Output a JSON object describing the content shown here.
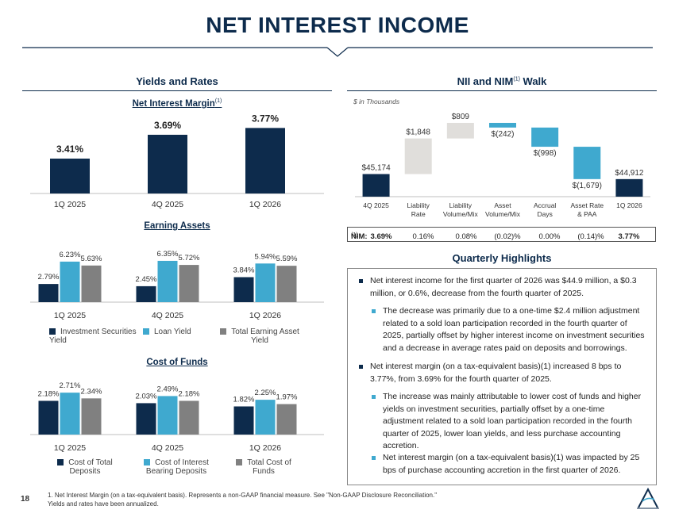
{
  "page_title": "NET INTEREST INCOME",
  "page_number": "18",
  "colors": {
    "navy": "#0d2b4c",
    "teal": "#3fa9cf",
    "gray": "#808080",
    "light_gray": "#e0dedb"
  },
  "left": {
    "heading": "Yields and Rates",
    "nim_chart_title": "Net Interest Margin",
    "nim_chart_title_sup": "(1)",
    "earning_title": "Earning Assets",
    "cof_title": "Cost of Funds",
    "earning_legend": [
      "Investment Securities Yield",
      "Loan Yield",
      "Total Earning Asset Yield"
    ],
    "cof_legend": [
      "Cost of Total Deposits",
      "Cost of Interest Bearing Deposits",
      "Total Cost of Funds"
    ]
  },
  "right": {
    "heading": "NII and NIM",
    "heading_sup": "(1)",
    "heading_suffix": " Walk",
    "units_note": "$ in Thousands",
    "nim_label": "NIM:",
    "nim_sup": "(1)",
    "nim_values": [
      "3.69%",
      "0.16%",
      "0.08%",
      "(0.02)%",
      "0.00%",
      "(0.14)%",
      "3.77%"
    ],
    "highlights_title": "Quarterly Highlights",
    "bullets": [
      {
        "level": 1,
        "text": "Net interest income for the first quarter of 2026 was $44.9 million, a $0.3 million, or 0.6%, decrease from the fourth quarter of 2025."
      },
      {
        "level": 2,
        "text": "The decrease was primarily due to a one-time $2.4 million adjustment related to a sold loan participation recorded in the fourth quarter of 2025, partially offset by higher interest income on investment securities and a decrease in average rates paid on deposits and borrowings."
      },
      {
        "level": 1,
        "text": "Net interest margin (on a tax-equivalent basis)(1) increased 8 bps to 3.77%, from 3.69% for the fourth quarter of 2025."
      },
      {
        "level": 2,
        "text": "The increase was mainly attributable to lower cost of funds and higher yields on investment securities, partially offset by a one-time adjustment related to a sold loan participation recorded in the fourth quarter of 2025, lower loan yields, and less purchase accounting accretion."
      },
      {
        "level": 2,
        "text": "Net interest margin (on a tax-equivalent basis)(1) was impacted by 25 bps of purchase accounting accretion in the first quarter of 2026."
      }
    ]
  },
  "footnotes": [
    "1. Net Interest Margin (on a tax-equivalent basis). Represents a non-GAAP financial measure. See \"Non-GAAP Disclosure Reconciliation.\"",
    "Yields and rates have been annualized."
  ],
  "chart_data": [
    {
      "id": "nim",
      "type": "bar",
      "title": "Net Interest Margin",
      "categories": [
        "1Q 2025",
        "4Q 2025",
        "1Q 2026"
      ],
      "series": [
        {
          "values": [
            3.41,
            3.69,
            3.77
          ],
          "labels": [
            "3.41%",
            "3.69%",
            "3.77%"
          ]
        }
      ]
    },
    {
      "id": "earning",
      "type": "bar",
      "title": "Earning Assets",
      "categories": [
        "1Q 2025",
        "4Q 2025",
        "1Q 2026"
      ],
      "series": [
        {
          "name": "Investment Securities Yield",
          "color": "#0d2b4c",
          "values": [
            2.79,
            2.45,
            3.84
          ],
          "labels": [
            "2.79%",
            "2.45%",
            "3.84%"
          ]
        },
        {
          "name": "Loan Yield",
          "color": "#3fa9cf",
          "values": [
            6.23,
            6.35,
            5.94
          ],
          "labels": [
            "6.23%",
            "6.35%",
            "5.94%"
          ]
        },
        {
          "name": "Total Earning Asset Yield",
          "color": "#808080",
          "values": [
            5.63,
            5.72,
            5.59
          ],
          "labels": [
            "5.63%",
            "5.72%",
            "5.59%"
          ]
        }
      ]
    },
    {
      "id": "cof",
      "type": "bar",
      "title": "Cost of Funds",
      "categories": [
        "1Q 2025",
        "4Q 2025",
        "1Q 2026"
      ],
      "series": [
        {
          "name": "Cost of Total Deposits",
          "color": "#0d2b4c",
          "values": [
            2.18,
            2.03,
            1.82
          ],
          "labels": [
            "2.18%",
            "2.03%",
            "1.82%"
          ]
        },
        {
          "name": "Cost of Interest Bearing Deposits",
          "color": "#3fa9cf",
          "values": [
            2.71,
            2.49,
            2.25
          ],
          "labels": [
            "2.71%",
            "2.49%",
            "2.25%"
          ]
        },
        {
          "name": "Total Cost of Funds",
          "color": "#808080",
          "values": [
            2.34,
            2.18,
            1.97
          ],
          "labels": [
            "2.34%",
            "2.18%",
            "1.97%"
          ]
        }
      ]
    },
    {
      "id": "walk",
      "type": "bar",
      "title": "NII and NIM Walk",
      "categories": [
        "4Q 2025",
        "Liability Rate",
        "Liability Volume/Mix",
        "Asset Volume/Mix",
        "Accrual Days",
        "Asset Rate & PAA",
        "1Q 2026"
      ],
      "values": [
        45174,
        1848,
        809,
        -242,
        -998,
        -1679,
        44912
      ],
      "labels": [
        "$45,174",
        "$1,848",
        "$809",
        "$(242)",
        "$(998)",
        "$(1,679)",
        "$44,912"
      ],
      "kinds": [
        "total",
        "increase",
        "increase",
        "decrease",
        "decrease",
        "decrease",
        "total"
      ]
    }
  ]
}
